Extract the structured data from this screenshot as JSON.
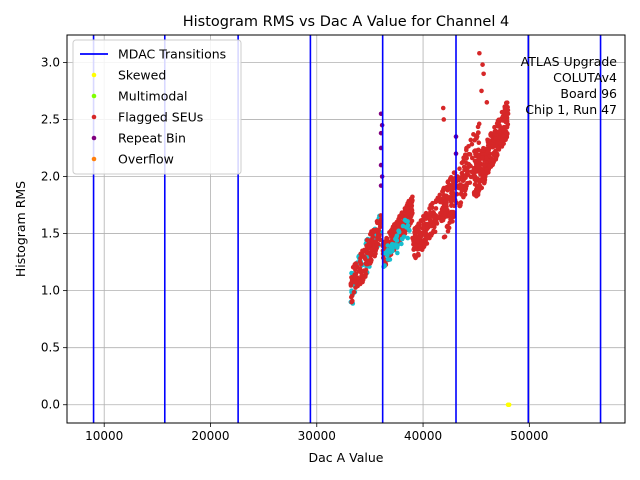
{
  "chart_data": {
    "type": "scatter",
    "title": "Histogram RMS vs Dac A Value for Channel 4",
    "xlabel": "Dac A Value",
    "ylabel": "Histogram RMS",
    "xlim": [
      6500,
      59000
    ],
    "ylim": [
      -0.16,
      3.24
    ],
    "xticks": [
      10000,
      20000,
      30000,
      40000,
      50000
    ],
    "xtick_labels": [
      "10000",
      "20000",
      "30000",
      "40000",
      "50000"
    ],
    "yticks": [
      0.0,
      0.5,
      1.0,
      1.5,
      2.0,
      2.5,
      3.0
    ],
    "ytick_labels": [
      "0.0",
      "0.5",
      "1.0",
      "1.5",
      "2.0",
      "2.5",
      "3.0"
    ],
    "grid": true,
    "legend_placement": "top-left",
    "legend": [
      {
        "label": "MDAC Transitions",
        "kind": "line",
        "color": "#0000ff"
      },
      {
        "label": "Skewed",
        "kind": "marker",
        "color": "#ffff00"
      },
      {
        "label": "Multimodal",
        "kind": "marker",
        "color": "#7fff00"
      },
      {
        "label": "Flagged SEUs",
        "kind": "marker",
        "color": "#d62728"
      },
      {
        "label": "Repeat Bin",
        "kind": "marker",
        "color": "#800080"
      },
      {
        "label": "Overflow",
        "kind": "marker",
        "color": "#ff7f0e"
      }
    ],
    "annotation_lines": [
      "ATLAS Upgrade",
      "COLUTAv4",
      "Board 96",
      "Chip 1, Run 47"
    ],
    "mdac_transitions": [
      9000,
      15700,
      22600,
      29400,
      36200,
      43100,
      49900,
      56700
    ],
    "series_colors": {
      "base": "#17becf",
      "flagged": "#d62728",
      "repeat": "#800080",
      "skewed": "#ffff00"
    },
    "clusters": [
      {
        "series": "base",
        "x": [
          33200,
          36100
        ],
        "y": [
          1.0,
          1.56
        ],
        "n": 70
      },
      {
        "series": "flagged",
        "x": [
          33200,
          36100
        ],
        "y": [
          1.02,
          1.55
        ],
        "n": 130
      },
      {
        "series": "flagged",
        "x": [
          36200,
          39000
        ],
        "y": [
          1.3,
          1.72
        ],
        "n": 240
      },
      {
        "series": "base",
        "x": [
          36200,
          38800
        ],
        "y": [
          1.22,
          1.6
        ],
        "n": 40
      },
      {
        "series": "flagged",
        "x": [
          39000,
          43000
        ],
        "y": [
          1.38,
          1.9
        ],
        "n": 240
      },
      {
        "series": "flagged",
        "x": [
          41800,
          45300
        ],
        "y": [
          1.6,
          2.3
        ],
        "n": 150
      },
      {
        "series": "flagged",
        "x": [
          44800,
          48000
        ],
        "y": [
          1.93,
          2.52
        ],
        "n": 260
      }
    ],
    "outlier_points": {
      "repeat": [
        [
          36050,
          2.55
        ],
        [
          36050,
          2.38
        ],
        [
          36050,
          2.25
        ],
        [
          36050,
          2.1
        ],
        [
          36050,
          1.92
        ],
        [
          36150,
          2.45
        ],
        [
          36150,
          2.0
        ],
        [
          43100,
          2.35
        ],
        [
          43100,
          2.2
        ]
      ],
      "flagged": [
        [
          45300,
          3.08
        ],
        [
          45600,
          2.98
        ],
        [
          45700,
          2.9
        ],
        [
          45500,
          2.75
        ],
        [
          46000,
          2.65
        ],
        [
          41900,
          2.6
        ],
        [
          41950,
          2.5
        ],
        [
          47700,
          2.6
        ],
        [
          48000,
          2.55
        ]
      ],
      "skewed": [
        [
          48000,
          0.0
        ],
        [
          48100,
          0.0
        ]
      ]
    }
  }
}
